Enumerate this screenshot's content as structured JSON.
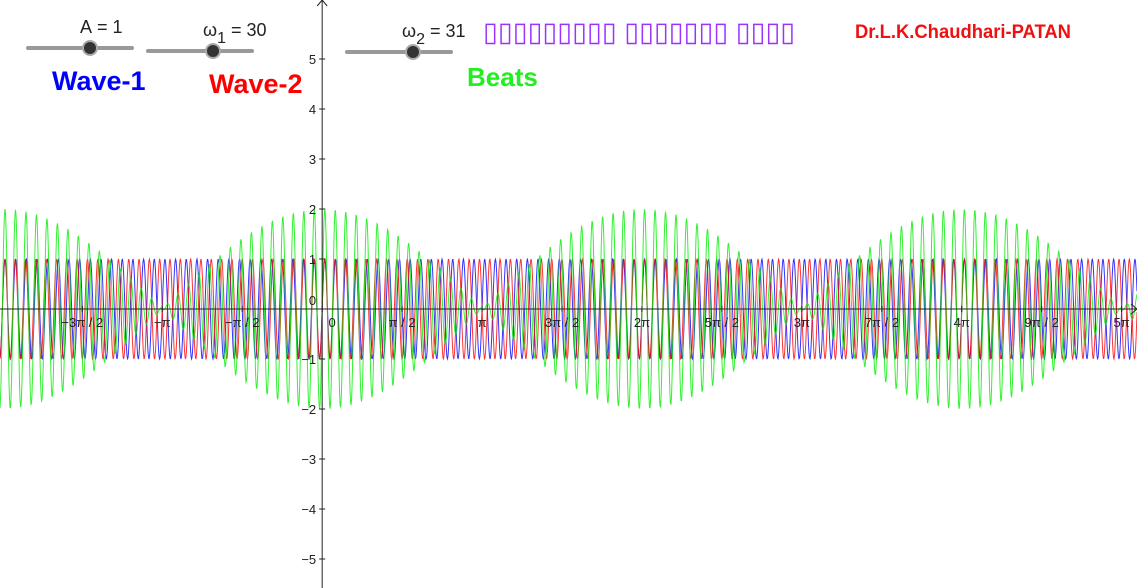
{
  "sliders": [
    {
      "symbol": "A",
      "subscript": null,
      "value_text": "= 1",
      "value": 1
    },
    {
      "symbol": "ω",
      "subscript": "1",
      "value_text": "= 30",
      "value": 30
    },
    {
      "symbol": "ω",
      "subscript": "2",
      "value_text": "= 31",
      "value": 31
    }
  ],
  "chart_data": {
    "type": "function",
    "title": "▯▯▯▯▯▯▯▯▯ ▯▯▯▯▯▯▯ ▯▯▯▯",
    "author": "Dr.L.K.Chaudhari-PATAN",
    "series": [
      {
        "name": "Wave-1",
        "color": "#0000ff",
        "omegas": [
          1
        ]
      },
      {
        "name": "Wave-2",
        "color": "#ff0000",
        "omegas": [
          2
        ]
      },
      {
        "name": "Beats",
        "color": "#00ee00",
        "omegas": [
          1,
          2
        ]
      }
    ],
    "xlim": [
      -6.33,
      16.01
    ],
    "ylim": [
      -5.58,
      6.18
    ],
    "xticks": [
      {
        "value": -4.7124,
        "label": "−3π / 2"
      },
      {
        "value": -3.1416,
        "label": "−π"
      },
      {
        "value": -1.5708,
        "label": "−π / 2"
      },
      0,
      {
        "value": 1.5708,
        "label": "π / 2"
      },
      {
        "value": 3.1416,
        "label": "π"
      },
      {
        "value": 4.7124,
        "label": "3π / 2"
      },
      {
        "value": 6.2832,
        "label": "2π"
      },
      {
        "value": 7.854,
        "label": "5π / 2"
      },
      {
        "value": 9.4248,
        "label": "3π"
      },
      {
        "value": 10.9956,
        "label": "7π / 2"
      },
      {
        "value": 12.5664,
        "label": "4π"
      },
      {
        "value": 14.1372,
        "label": "9π / 2"
      },
      {
        "value": 15.708,
        "label": "5π"
      }
    ],
    "yticks": [
      {
        "value": -5,
        "label": "−5"
      },
      {
        "value": -4,
        "label": "−4"
      },
      {
        "value": -3,
        "label": "−3"
      },
      {
        "value": -2,
        "label": "−2"
      },
      {
        "value": -1,
        "label": "−1"
      },
      0,
      1,
      2,
      3,
      4,
      5
    ]
  }
}
